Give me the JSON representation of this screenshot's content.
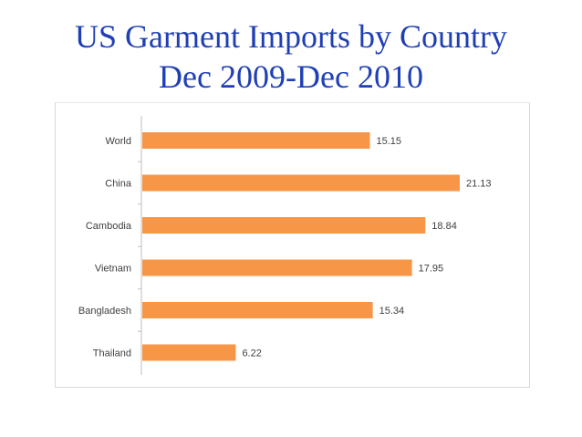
{
  "slide": {
    "title_line1": "US Garment Imports by Country",
    "title_line2": "Dec 2009-Dec 2010",
    "title_color": "#1f3fb5"
  },
  "chart_data": {
    "type": "bar",
    "orientation": "horizontal",
    "categories": [
      "World",
      "China",
      "Cambodia",
      "Vietnam",
      "Bangladesh",
      "Thailand"
    ],
    "values": [
      15.15,
      21.13,
      18.84,
      17.95,
      15.34,
      6.22
    ],
    "data_labels": [
      "15.15",
      "21.13",
      "18.84",
      "17.95",
      "15.34",
      "6.22"
    ],
    "xlim": [
      0,
      21.13
    ],
    "bar_color": "#f79646",
    "grid": false,
    "legend": "none"
  }
}
